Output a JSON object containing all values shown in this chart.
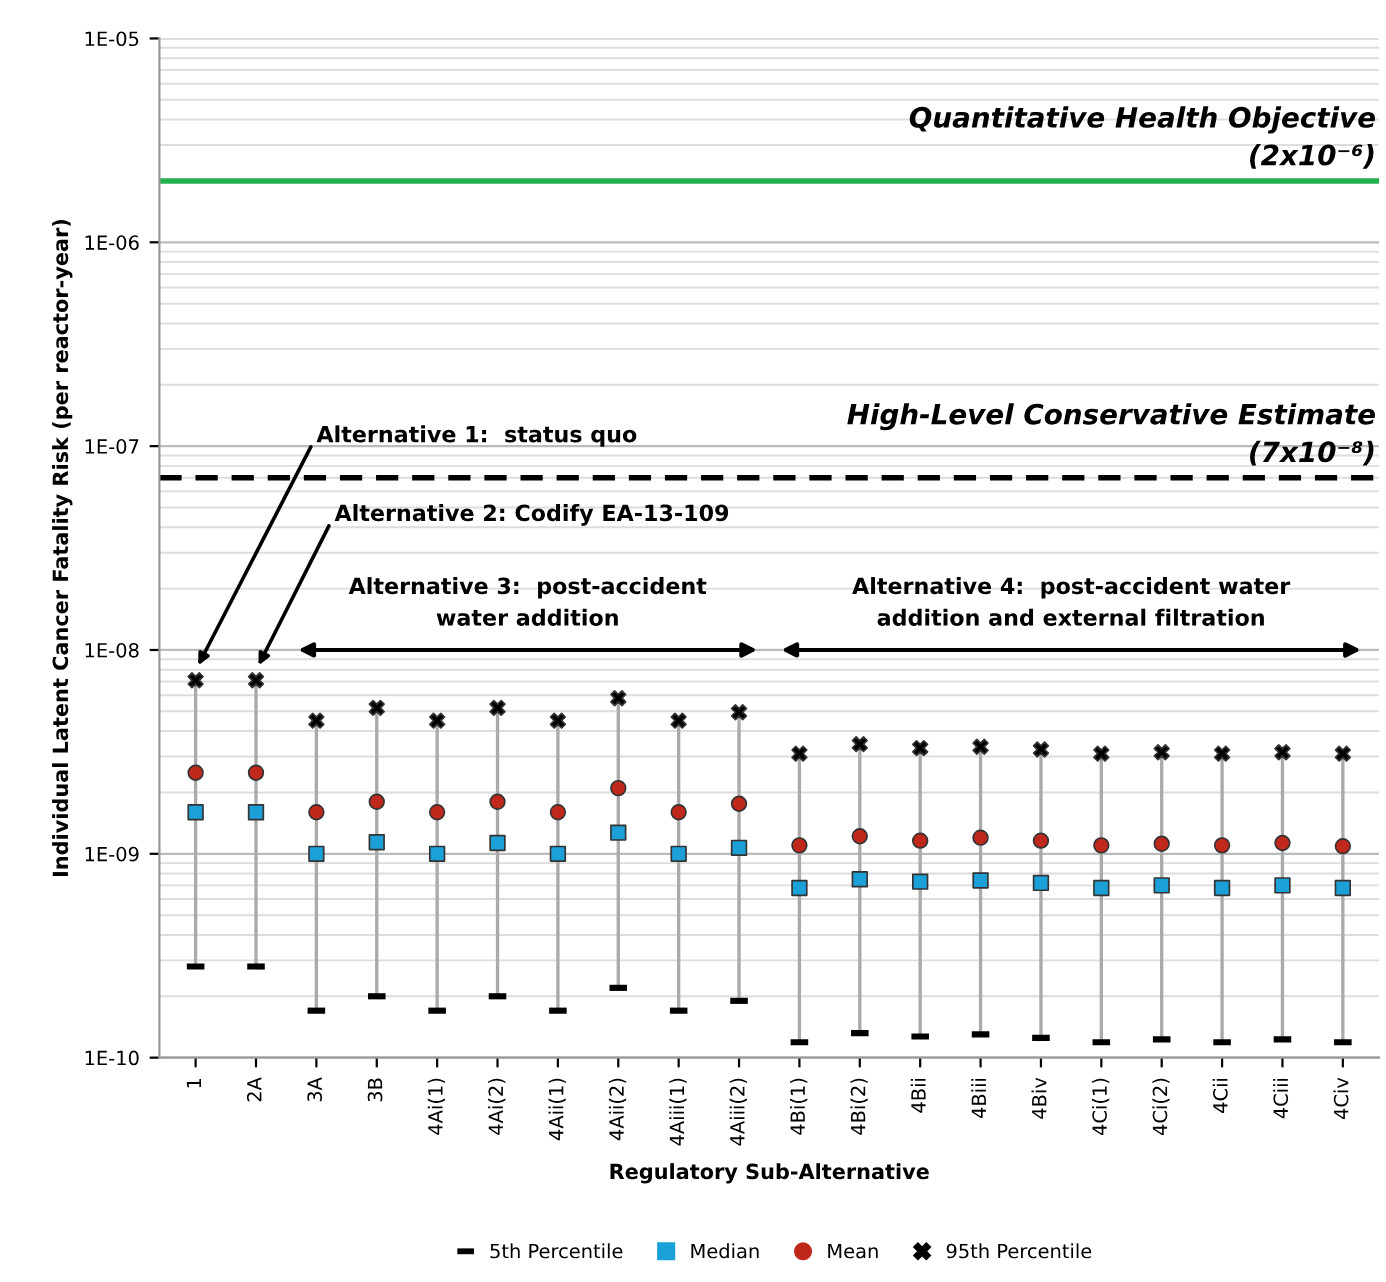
{
  "chart_data": {
    "type": "scatter",
    "ylabel": "Individual Latent Cancer Fatality Risk (per reactor-year)",
    "xlabel": "Regulatory Sub-Alternative",
    "categories": [
      "1",
      "2A",
      "3A",
      "3B",
      "4Ai(1)",
      "4Ai(2)",
      "4Aii(1)",
      "4Aii(2)",
      "4Aiii(1)",
      "4Aiii(2)",
      "4Bi(1)",
      "4Bi(2)",
      "4Bii",
      "4Biii",
      "4Biv",
      "4Ci(1)",
      "4Ci(2)",
      "4Cii",
      "4Ciii",
      "4Civ"
    ],
    "series": [
      {
        "name": "5th Percentile",
        "color": "#000000",
        "values": [
          2.8e-10,
          2.8e-10,
          1.7e-10,
          2e-10,
          1.7e-10,
          2e-10,
          1.7e-10,
          2.2e-10,
          1.7e-10,
          1.9e-10,
          1.19e-10,
          1.32e-10,
          1.27e-10,
          1.3e-10,
          1.25e-10,
          1.19e-10,
          1.23e-10,
          1.19e-10,
          1.23e-10,
          1.19e-10
        ]
      },
      {
        "name": "Median",
        "color": "#1ca0d8",
        "marker": "square",
        "values": [
          1.6e-09,
          1.6e-09,
          1e-09,
          1.14e-09,
          1e-09,
          1.13e-09,
          1e-09,
          1.27e-09,
          1e-09,
          1.07e-09,
          6.8e-10,
          7.5e-10,
          7.3e-10,
          7.4e-10,
          7.2e-10,
          6.8e-10,
          7e-10,
          6.8e-10,
          7e-10,
          6.8e-10
        ]
      },
      {
        "name": "Mean",
        "color": "#c0281c",
        "marker": "circle",
        "values": [
          2.5e-09,
          2.5e-09,
          1.6e-09,
          1.8e-09,
          1.6e-09,
          1.8e-09,
          1.6e-09,
          2.1e-09,
          1.6e-09,
          1.76e-09,
          1.1e-09,
          1.22e-09,
          1.16e-09,
          1.2e-09,
          1.16e-09,
          1.1e-09,
          1.12e-09,
          1.1e-09,
          1.13e-09,
          1.09e-09
        ]
      },
      {
        "name": "95th Percentile",
        "color": "#000000",
        "marker": "cross",
        "values": [
          7.1e-09,
          7.1e-09,
          4.5e-09,
          5.2e-09,
          4.5e-09,
          5.2e-09,
          4.5e-09,
          5.8e-09,
          4.5e-09,
          4.95e-09,
          3.1e-09,
          3.45e-09,
          3.3e-09,
          3.35e-09,
          3.25e-09,
          3.1e-09,
          3.15e-09,
          3.1e-09,
          3.15e-09,
          3.1e-09
        ]
      }
    ],
    "log": "y",
    "ylim": [
      1e-10,
      1e-05
    ],
    "yticks": [
      {
        "value": 1e-10,
        "label": "1E-10"
      },
      {
        "value": 1e-09,
        "label": "1E-09"
      },
      {
        "value": 1e-08,
        "label": "1E-08"
      },
      {
        "value": 1e-07,
        "label": "1E-07"
      },
      {
        "value": 1e-06,
        "label": "1E-06"
      },
      {
        "value": 1e-05,
        "label": "1E-05"
      }
    ],
    "grid": "y",
    "legend": "bottom",
    "ref_lines": [
      {
        "axis": "y",
        "value": 2e-06,
        "label": "Quantitative Health Objective\n(2x10⁻⁶)",
        "color": "#22b14c",
        "line_style": "solid"
      },
      {
        "axis": "y",
        "value": 7e-08,
        "label": "High-Level Conservative Estimate\n(7x10⁻⁸)",
        "color": "#000000",
        "line_style": "dashed"
      }
    ],
    "annotations": [
      "Alternative 1:  status quo",
      "Alternative 2: Codify EA-13-109",
      "Alternative 3:  post-accident\nwater addition",
      "Alternative 4:  post-accident water\naddition and external filtration"
    ]
  }
}
